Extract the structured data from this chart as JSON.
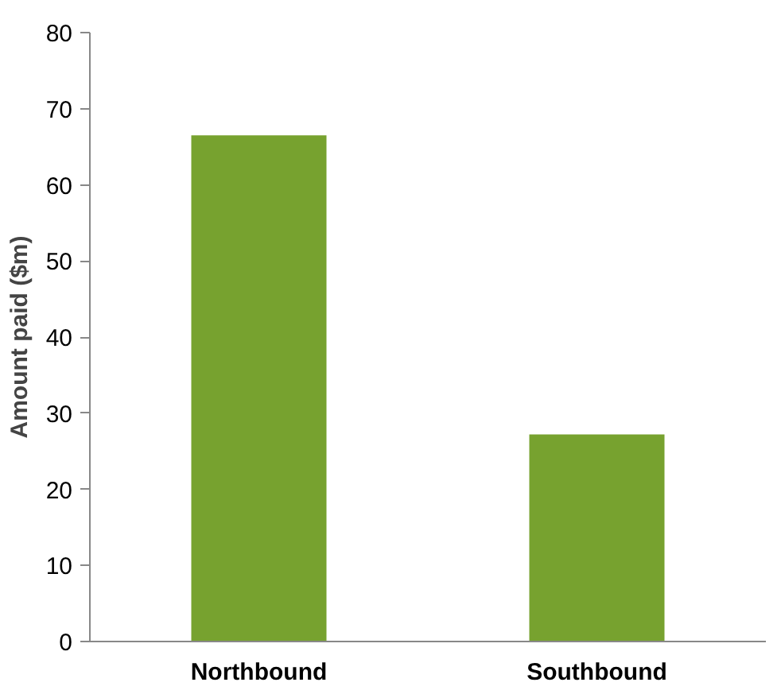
{
  "chart_data": {
    "type": "bar",
    "ylabel": "Amount paid ($m)",
    "categories": [
      "Northbound",
      "Southbound"
    ],
    "values": [
      66.5,
      27.2
    ],
    "color": "#77a22f",
    "ylim": [
      0,
      80
    ],
    "yticks": [
      0,
      10,
      20,
      30,
      40,
      50,
      60,
      70,
      80
    ],
    "grid": false
  }
}
